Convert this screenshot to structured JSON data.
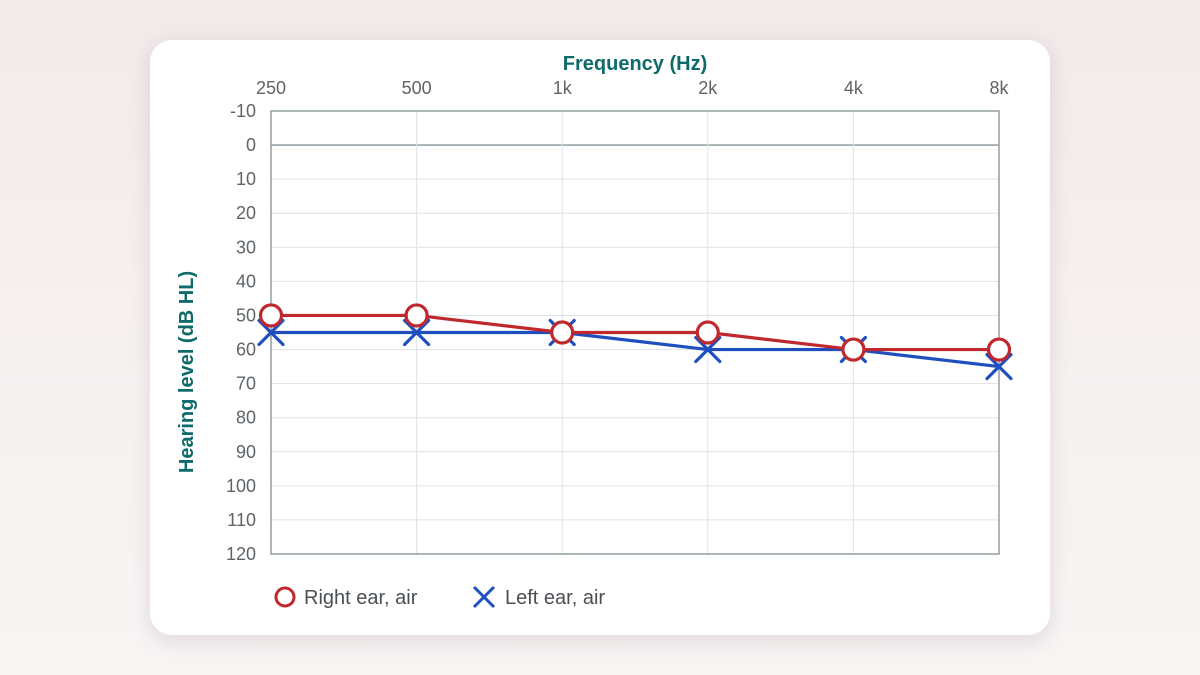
{
  "chart_data": {
    "type": "line",
    "xlabel": "Frequency (Hz)",
    "ylabel": "Hearing level (dB HL)",
    "categories": [
      "250",
      "500",
      "1k",
      "2k",
      "4k",
      "8k"
    ],
    "ylim": [
      -10,
      120
    ],
    "y_inverted": true,
    "y_ticks": [
      -10,
      0,
      10,
      20,
      30,
      40,
      50,
      60,
      70,
      80,
      90,
      100,
      110,
      120
    ],
    "grid": true,
    "legend_position": "bottom-left",
    "series": [
      {
        "name": "Right ear, air",
        "marker": "circle",
        "color": "#c0282d",
        "values": [
          50,
          50,
          55,
          55,
          60,
          60
        ]
      },
      {
        "name": "Left ear, air",
        "marker": "cross",
        "color": "#1f4fbf",
        "values": [
          55,
          55,
          55,
          60,
          60,
          65
        ]
      }
    ]
  },
  "colors": {
    "title": "#0f6b6b",
    "grid": "#dde3e6",
    "frame": "#9aa3a8",
    "zero_line": "#9aa3a8"
  }
}
